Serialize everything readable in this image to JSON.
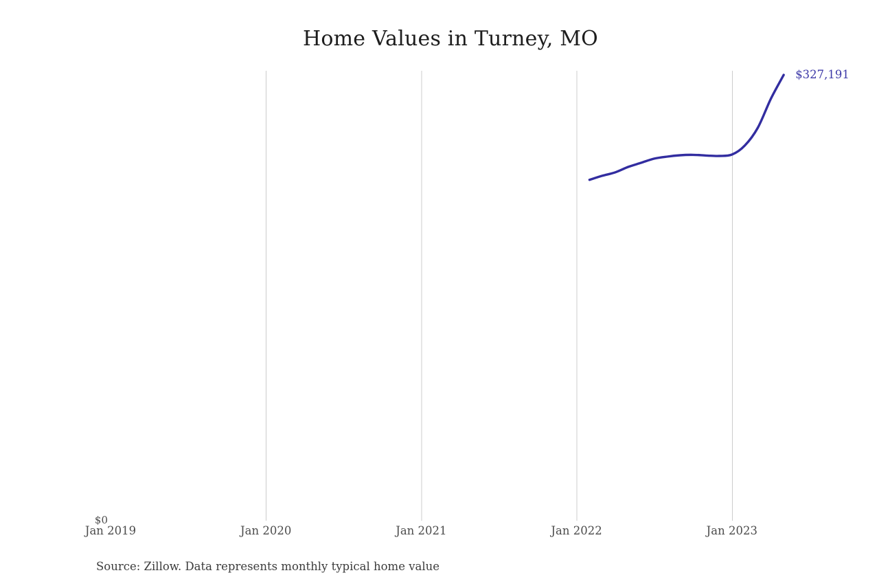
{
  "header": {
    "title": "Home Values in Turney, MO"
  },
  "annotation": {
    "text": "$327,191"
  },
  "y_axis": {
    "zero_label": "$0"
  },
  "footer": {
    "source_note": "Source: Zillow. Data represents monthly typical home value"
  },
  "colors": {
    "line": "#322da0",
    "annotation_text": "#3e3aa8",
    "grid": "#cccccc",
    "title_text": "#1d1d1d",
    "axis_text": "#4c4c4c",
    "source_text": "#3c3c3c"
  },
  "chart_data": {
    "type": "line",
    "title": "Home Values in Turney, MO",
    "xlabel": "",
    "ylabel": "",
    "x_tick_labels": [
      "Jan 2019",
      "Jan 2020",
      "Jan 2021",
      "Jan 2022",
      "Jan 2023"
    ],
    "y_tick_labels": [
      "$0"
    ],
    "ylim": [
      0,
      340000
    ],
    "grid": "vertical-only",
    "legend": "none",
    "end_point_label": "$327,191",
    "series": [
      {
        "name": "Typical home value",
        "x": [
          "Jan 2022",
          "Feb 2022",
          "Mar 2022",
          "Apr 2022",
          "May 2022",
          "Jun 2022",
          "Jul 2022",
          "Aug 2022",
          "Sep 2022",
          "Oct 2022",
          "Nov 2022",
          "Dec 2022",
          "Jan 2023",
          "Feb 2023",
          "Mar 2023",
          "Apr 2023"
        ],
        "values": [
          250400,
          253400,
          255900,
          259900,
          262900,
          265900,
          267400,
          268400,
          268700,
          268200,
          267900,
          268900,
          275500,
          288500,
          309500,
          327191
        ]
      }
    ]
  }
}
